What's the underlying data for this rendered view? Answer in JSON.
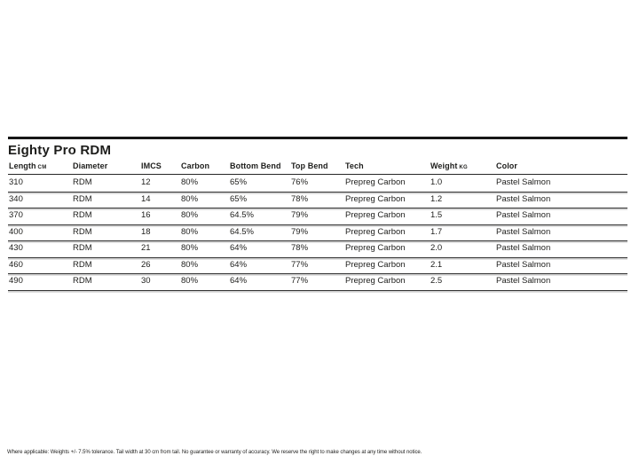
{
  "page": {
    "title": "Eighty Pro RDM",
    "footer_note": "Where applicable: Weights +/- 7.5% tolerance. Tail width at 30 cm from tail. No guarantee or warranty of accuracy. We reserve the right to make changes at any time without notice."
  },
  "colors": {
    "text": "#1d1d1b",
    "rule_dark": "#262626",
    "rule_light": "#b2b2b2",
    "background": "#ffffff"
  },
  "table": {
    "columns": [
      {
        "key": "length",
        "label": "Length",
        "unit": "CM"
      },
      {
        "key": "diameter",
        "label": "Diameter",
        "unit": ""
      },
      {
        "key": "imcs",
        "label": "IMCS",
        "unit": ""
      },
      {
        "key": "carbon",
        "label": "Carbon",
        "unit": ""
      },
      {
        "key": "bottom-bend",
        "label": "Bottom Bend",
        "unit": ""
      },
      {
        "key": "top-bend",
        "label": "Top Bend",
        "unit": ""
      },
      {
        "key": "tech",
        "label": "Tech",
        "unit": ""
      },
      {
        "key": "weight",
        "label": "Weight",
        "unit": "KG"
      },
      {
        "key": "color",
        "label": "Color",
        "unit": ""
      }
    ],
    "rows": [
      [
        "310",
        "RDM",
        "12",
        "80%",
        "65%",
        "76%",
        "Prepreg Carbon",
        "1.0",
        "Pastel Salmon"
      ],
      [
        "340",
        "RDM",
        "14",
        "80%",
        "65%",
        "78%",
        "Prepreg Carbon",
        "1.2",
        "Pastel Salmon"
      ],
      [
        "370",
        "RDM",
        "16",
        "80%",
        "64.5%",
        "79%",
        "Prepreg Carbon",
        "1.5",
        "Pastel Salmon"
      ],
      [
        "400",
        "RDM",
        "18",
        "80%",
        "64.5%",
        "79%",
        "Prepreg Carbon",
        "1.7",
        "Pastel Salmon"
      ],
      [
        "430",
        "RDM",
        "21",
        "80%",
        "64%",
        "78%",
        "Prepreg Carbon",
        "2.0",
        "Pastel Salmon"
      ],
      [
        "460",
        "RDM",
        "26",
        "80%",
        "64%",
        "77%",
        "Prepreg Carbon",
        "2.1",
        "Pastel Salmon"
      ],
      [
        "490",
        "RDM",
        "30",
        "80%",
        "64%",
        "77%",
        "Prepreg Carbon",
        "2.5",
        "Pastel Salmon"
      ]
    ]
  }
}
